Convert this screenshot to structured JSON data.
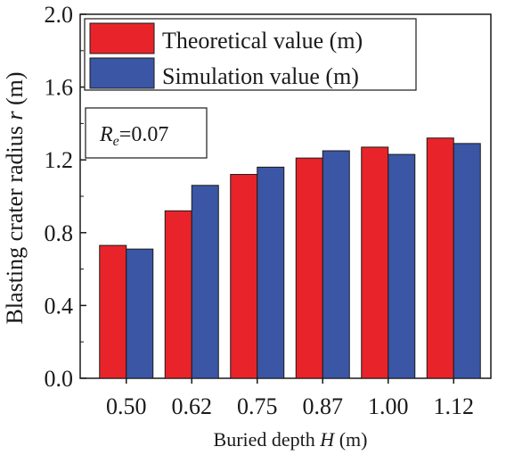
{
  "chart_data": {
    "type": "bar",
    "title": "",
    "xlabel": "Buried depth ",
    "xlabel_var": "H",
    "xlabel_unit": " (m)",
    "ylabel": "Blasting crater radius ",
    "ylabel_var": "r",
    "ylabel_unit": " (m)",
    "categories": [
      "0.50",
      "0.62",
      "0.75",
      "0.87",
      "1.00",
      "1.12"
    ],
    "series": [
      {
        "name": "Theoretical value (m)",
        "color": "#e8242a",
        "values": [
          0.73,
          0.92,
          1.12,
          1.21,
          1.27,
          1.32
        ]
      },
      {
        "name": "Simulation value (m)",
        "color": "#3a56a5",
        "values": [
          0.71,
          1.06,
          1.16,
          1.25,
          1.23,
          1.29
        ]
      }
    ],
    "ylim": [
      0.0,
      2.0
    ],
    "yticks": [
      "0.0",
      "0.4",
      "0.8",
      "1.2",
      "1.6",
      "2.0"
    ],
    "ytick_values": [
      0.0,
      0.4,
      0.8,
      1.2,
      1.6,
      2.0
    ],
    "grid": false,
    "legend_position": "top-left",
    "annotation": {
      "var": "R",
      "sub": "e",
      "text": "=0.07"
    }
  }
}
